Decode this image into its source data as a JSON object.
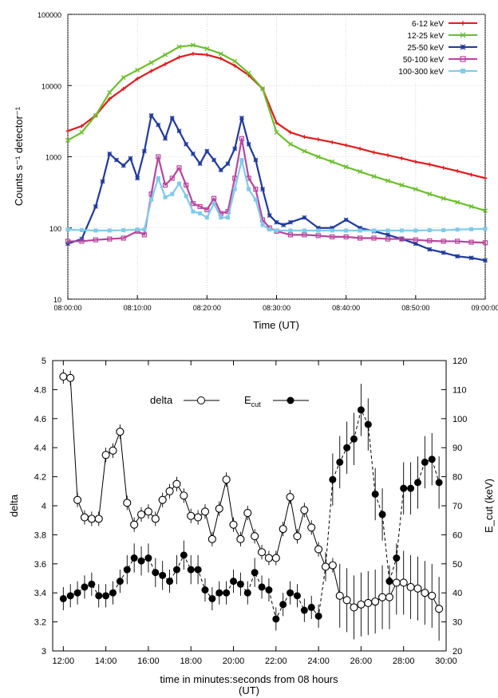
{
  "chart_data": [
    {
      "type": "line",
      "xlabel": "Time (UT)",
      "ylabel": "Counts s⁻¹ detector⁻¹",
      "yscale": "log",
      "ylim": [
        10,
        100000
      ],
      "xlim_minutes": [
        0,
        60
      ],
      "x_ticks": [
        "08:00:00",
        "08:10:00",
        "08:20:00",
        "08:30:00",
        "08:40:00",
        "08:50:00",
        "09:00:00"
      ],
      "y_ticks": [
        "10",
        "100",
        "1000",
        "10000",
        "100000"
      ],
      "grid": true,
      "legend_position": "top-right",
      "series": [
        {
          "name": "6-12 keV",
          "color": "#e31a1c",
          "marker": "+",
          "x": [
            0,
            2,
            4,
            6,
            8,
            10,
            12,
            14,
            16,
            18,
            20,
            22,
            24,
            26,
            28,
            30,
            32,
            34,
            36,
            38,
            40,
            42,
            44,
            46,
            48,
            50,
            52,
            54,
            56,
            58,
            60
          ],
          "y": [
            2300,
            2700,
            3800,
            6500,
            9000,
            12500,
            16000,
            20000,
            25000,
            28000,
            27000,
            24000,
            19000,
            14000,
            9000,
            3000,
            2200,
            1900,
            1750,
            1600,
            1450,
            1300,
            1150,
            1050,
            950,
            850,
            780,
            700,
            630,
            560,
            500
          ]
        },
        {
          "name": "12-25 keV",
          "color": "#6abf2a",
          "marker": "x",
          "x": [
            0,
            2,
            4,
            6,
            8,
            10,
            12,
            14,
            16,
            18,
            20,
            22,
            24,
            26,
            28,
            30,
            32,
            34,
            36,
            38,
            40,
            42,
            44,
            46,
            48,
            50,
            52,
            54,
            56,
            58,
            60
          ],
          "y": [
            1700,
            2200,
            3800,
            8000,
            13000,
            16500,
            21000,
            27000,
            35000,
            37000,
            33000,
            28000,
            22000,
            15000,
            9000,
            2200,
            1500,
            1200,
            1000,
            850,
            720,
            620,
            530,
            460,
            400,
            350,
            300,
            260,
            230,
            200,
            175
          ]
        },
        {
          "name": "25-50 keV",
          "color": "#1f3a9e",
          "marker": "*",
          "x": [
            0,
            2,
            4,
            5,
            6,
            7,
            8,
            9,
            10,
            11,
            12,
            13,
            14,
            15,
            16,
            17,
            18,
            19,
            20,
            21,
            22,
            23,
            24,
            25,
            26,
            27,
            28,
            29,
            30,
            31,
            32,
            34,
            36,
            38,
            40,
            42,
            44,
            46,
            48,
            50,
            52,
            54,
            56,
            58,
            60
          ],
          "y": [
            60,
            70,
            200,
            450,
            1100,
            900,
            750,
            950,
            500,
            1200,
            3800,
            2800,
            1800,
            3500,
            2300,
            1500,
            1100,
            800,
            1200,
            900,
            650,
            800,
            1300,
            3500,
            1500,
            900,
            350,
            150,
            120,
            110,
            120,
            140,
            100,
            100,
            130,
            100,
            90,
            80,
            70,
            60,
            50,
            45,
            40,
            38,
            35
          ]
        },
        {
          "name": "50-100 keV",
          "color": "#b8449e",
          "marker": "square",
          "x": [
            0,
            2,
            4,
            6,
            8,
            10,
            11,
            12,
            13,
            14,
            15,
            16,
            17,
            18,
            19,
            20,
            21,
            22,
            23,
            24,
            25,
            26,
            27,
            28,
            29,
            30,
            32,
            34,
            36,
            38,
            40,
            42,
            44,
            46,
            48,
            50,
            52,
            54,
            56,
            58,
            60
          ],
          "y": [
            65,
            65,
            68,
            70,
            72,
            90,
            80,
            300,
            1000,
            400,
            500,
            700,
            400,
            220,
            200,
            180,
            260,
            160,
            170,
            500,
            1800,
            500,
            350,
            130,
            100,
            90,
            80,
            80,
            78,
            75,
            75,
            72,
            72,
            70,
            70,
            68,
            66,
            65,
            65,
            63,
            62
          ]
        },
        {
          "name": "100-300 keV",
          "color": "#7ecbea",
          "marker": "square-filled",
          "x": [
            0,
            2,
            4,
            6,
            8,
            10,
            11,
            12,
            13,
            14,
            15,
            16,
            17,
            18,
            19,
            20,
            21,
            22,
            23,
            24,
            25,
            26,
            27,
            28,
            29,
            30,
            32,
            34,
            36,
            38,
            40,
            42,
            44,
            46,
            48,
            50,
            52,
            54,
            56,
            58,
            60
          ],
          "y": [
            95,
            93,
            92,
            92,
            93,
            95,
            95,
            250,
            500,
            270,
            300,
            420,
            280,
            170,
            160,
            140,
            220,
            140,
            140,
            350,
            900,
            350,
            250,
            110,
            95,
            92,
            92,
            92,
            92,
            92,
            92,
            92,
            92,
            92,
            92,
            92,
            93,
            93,
            95,
            96,
            97
          ]
        }
      ]
    },
    {
      "type": "scatter",
      "xlabel": "time in minutes:seconds from 08 hours\n(UT)",
      "ylabel": "delta",
      "y2label": "E_cut (keV)",
      "ylim": [
        3,
        5
      ],
      "y2lim": [
        20,
        120
      ],
      "xlim": [
        "11:30",
        "30:00"
      ],
      "x_ticks": [
        "12:00",
        "14:00",
        "16:00",
        "18:00",
        "20:00",
        "22:00",
        "24:00",
        "26:00",
        "28:00",
        "30:00"
      ],
      "y_ticks": [
        "3",
        "3.2",
        "3.4",
        "3.6",
        "3.8",
        "4",
        "4.2",
        "4.4",
        "4.6",
        "4.8",
        "5"
      ],
      "y2_ticks": [
        "20",
        "30",
        "40",
        "50",
        "60",
        "70",
        "80",
        "90",
        "100",
        "110",
        "120"
      ],
      "legend_position": "top-center",
      "series": [
        {
          "name": "delta",
          "marker": "open-circle",
          "line": "solid",
          "axis": "left",
          "x": [
            "12:00",
            "12:20",
            "12:40",
            "13:00",
            "13:20",
            "13:40",
            "14:00",
            "14:20",
            "14:40",
            "15:00",
            "15:20",
            "15:40",
            "16:00",
            "16:20",
            "16:40",
            "17:00",
            "17:20",
            "17:40",
            "18:00",
            "18:20",
            "18:40",
            "19:00",
            "19:20",
            "19:40",
            "20:00",
            "20:20",
            "20:40",
            "21:00",
            "21:20",
            "21:40",
            "22:00",
            "22:20",
            "22:40",
            "23:00",
            "23:20",
            "23:40",
            "24:00",
            "24:20",
            "24:40",
            "25:00",
            "25:20",
            "25:40",
            "26:00",
            "26:20",
            "26:40",
            "27:00",
            "27:20",
            "27:40",
            "28:00",
            "28:20",
            "28:40",
            "29:00",
            "29:20",
            "29:40"
          ],
          "y": [
            4.89,
            4.88,
            4.04,
            3.92,
            3.91,
            3.91,
            4.35,
            4.38,
            4.51,
            4.02,
            3.87,
            3.94,
            3.96,
            3.91,
            4.04,
            4.1,
            4.15,
            4.07,
            3.93,
            3.92,
            3.96,
            3.77,
            3.98,
            4.18,
            3.87,
            3.77,
            3.95,
            3.79,
            3.68,
            3.64,
            3.64,
            3.84,
            4.06,
            3.79,
            3.97,
            3.85,
            3.7,
            3.58,
            3.59,
            3.38,
            3.35,
            3.3,
            3.32,
            3.33,
            3.34,
            3.37,
            3.37,
            3.47,
            3.47,
            3.44,
            3.43,
            3.4,
            3.38,
            3.29
          ]
        },
        {
          "name": "E_cut",
          "marker": "filled-circle",
          "line": "dashed",
          "axis": "right",
          "x": [
            "12:00",
            "12:20",
            "12:40",
            "13:00",
            "13:20",
            "13:40",
            "14:00",
            "14:20",
            "14:40",
            "15:00",
            "15:20",
            "15:40",
            "16:00",
            "16:20",
            "16:40",
            "17:00",
            "17:20",
            "17:40",
            "18:00",
            "18:20",
            "18:40",
            "19:00",
            "19:20",
            "19:40",
            "20:00",
            "20:20",
            "20:40",
            "21:00",
            "21:20",
            "21:40",
            "22:00",
            "22:20",
            "22:40",
            "23:00",
            "23:20",
            "23:40",
            "24:00",
            "24:20",
            "24:40",
            "25:00",
            "25:20",
            "25:40",
            "26:00",
            "26:20",
            "26:40",
            "27:00",
            "27:20",
            "27:40",
            "28:00",
            "28:20",
            "28:40",
            "29:00",
            "29:20",
            "29:40"
          ],
          "y": [
            38,
            39,
            40,
            42,
            43,
            39,
            39,
            40,
            44,
            48,
            52,
            51,
            52,
            47,
            46,
            44,
            48,
            53,
            48,
            48,
            41,
            38,
            40,
            40,
            44,
            43,
            40,
            47,
            42,
            41,
            31,
            36,
            40,
            39,
            34,
            35,
            32,
            49,
            79,
            85,
            90,
            93,
            103,
            98,
            74,
            67,
            44,
            52,
            76,
            76,
            78,
            85,
            86,
            78
          ]
        }
      ]
    }
  ]
}
